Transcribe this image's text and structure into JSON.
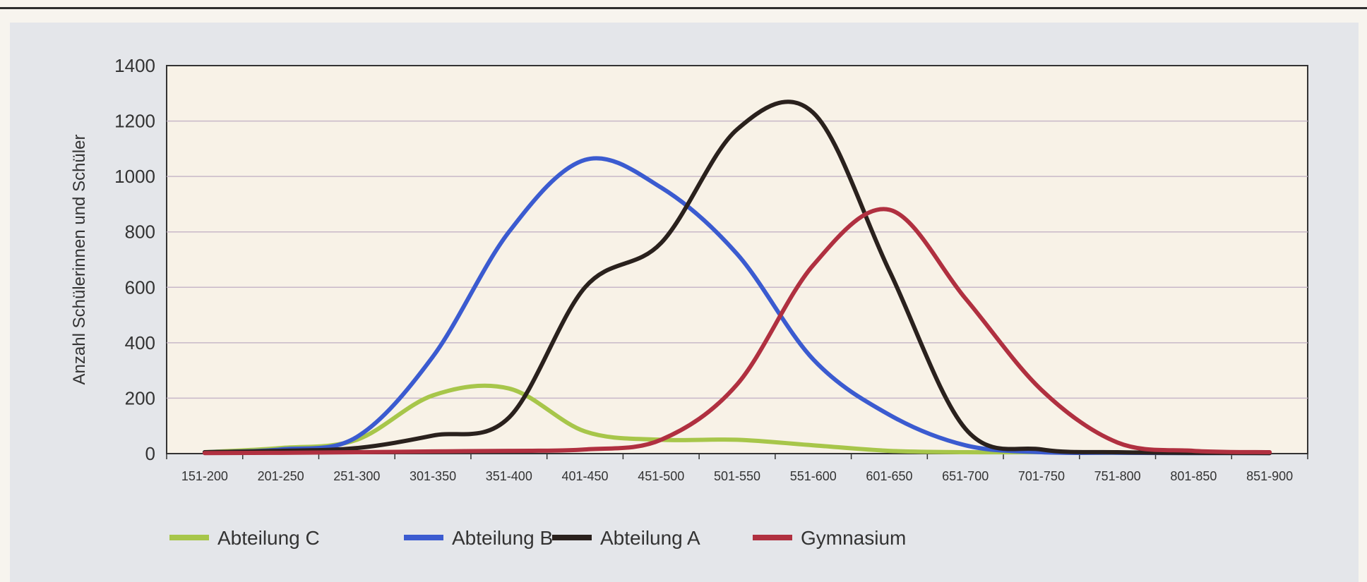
{
  "chart_data": {
    "type": "line",
    "title": "",
    "xlabel": "",
    "ylabel": "Anzahl Schülerinnen und Schüler",
    "ylim": [
      0,
      1400
    ],
    "yticks": [
      0,
      200,
      400,
      600,
      800,
      1000,
      1200,
      1400
    ],
    "grid": true,
    "legend_position": "bottom-left",
    "categories": [
      "151-200",
      "201-250",
      "251-300",
      "301-350",
      "351-400",
      "401-450",
      "451-500",
      "501-550",
      "551-600",
      "601-650",
      "651-700",
      "701-750",
      "751-800",
      "801-850",
      "851-900"
    ],
    "series": [
      {
        "name": "Abteilung C",
        "color": "#a7c64a",
        "values": [
          5,
          20,
          50,
          210,
          235,
          80,
          50,
          50,
          30,
          10,
          5,
          5,
          3,
          2,
          2
        ]
      },
      {
        "name": "Abteilung B",
        "color": "#3b5bd0",
        "values": [
          5,
          15,
          60,
          350,
          800,
          1060,
          960,
          720,
          340,
          140,
          30,
          5,
          3,
          2,
          2
        ]
      },
      {
        "name": "Abteilung A",
        "color": "#2a211d",
        "values": [
          5,
          10,
          20,
          65,
          130,
          600,
          760,
          1170,
          1230,
          660,
          90,
          15,
          5,
          3,
          2
        ]
      },
      {
        "name": "Gymnasium",
        "color": "#b03040",
        "values": [
          2,
          3,
          5,
          8,
          10,
          15,
          50,
          250,
          680,
          880,
          560,
          230,
          40,
          10,
          5
        ]
      }
    ]
  }
}
